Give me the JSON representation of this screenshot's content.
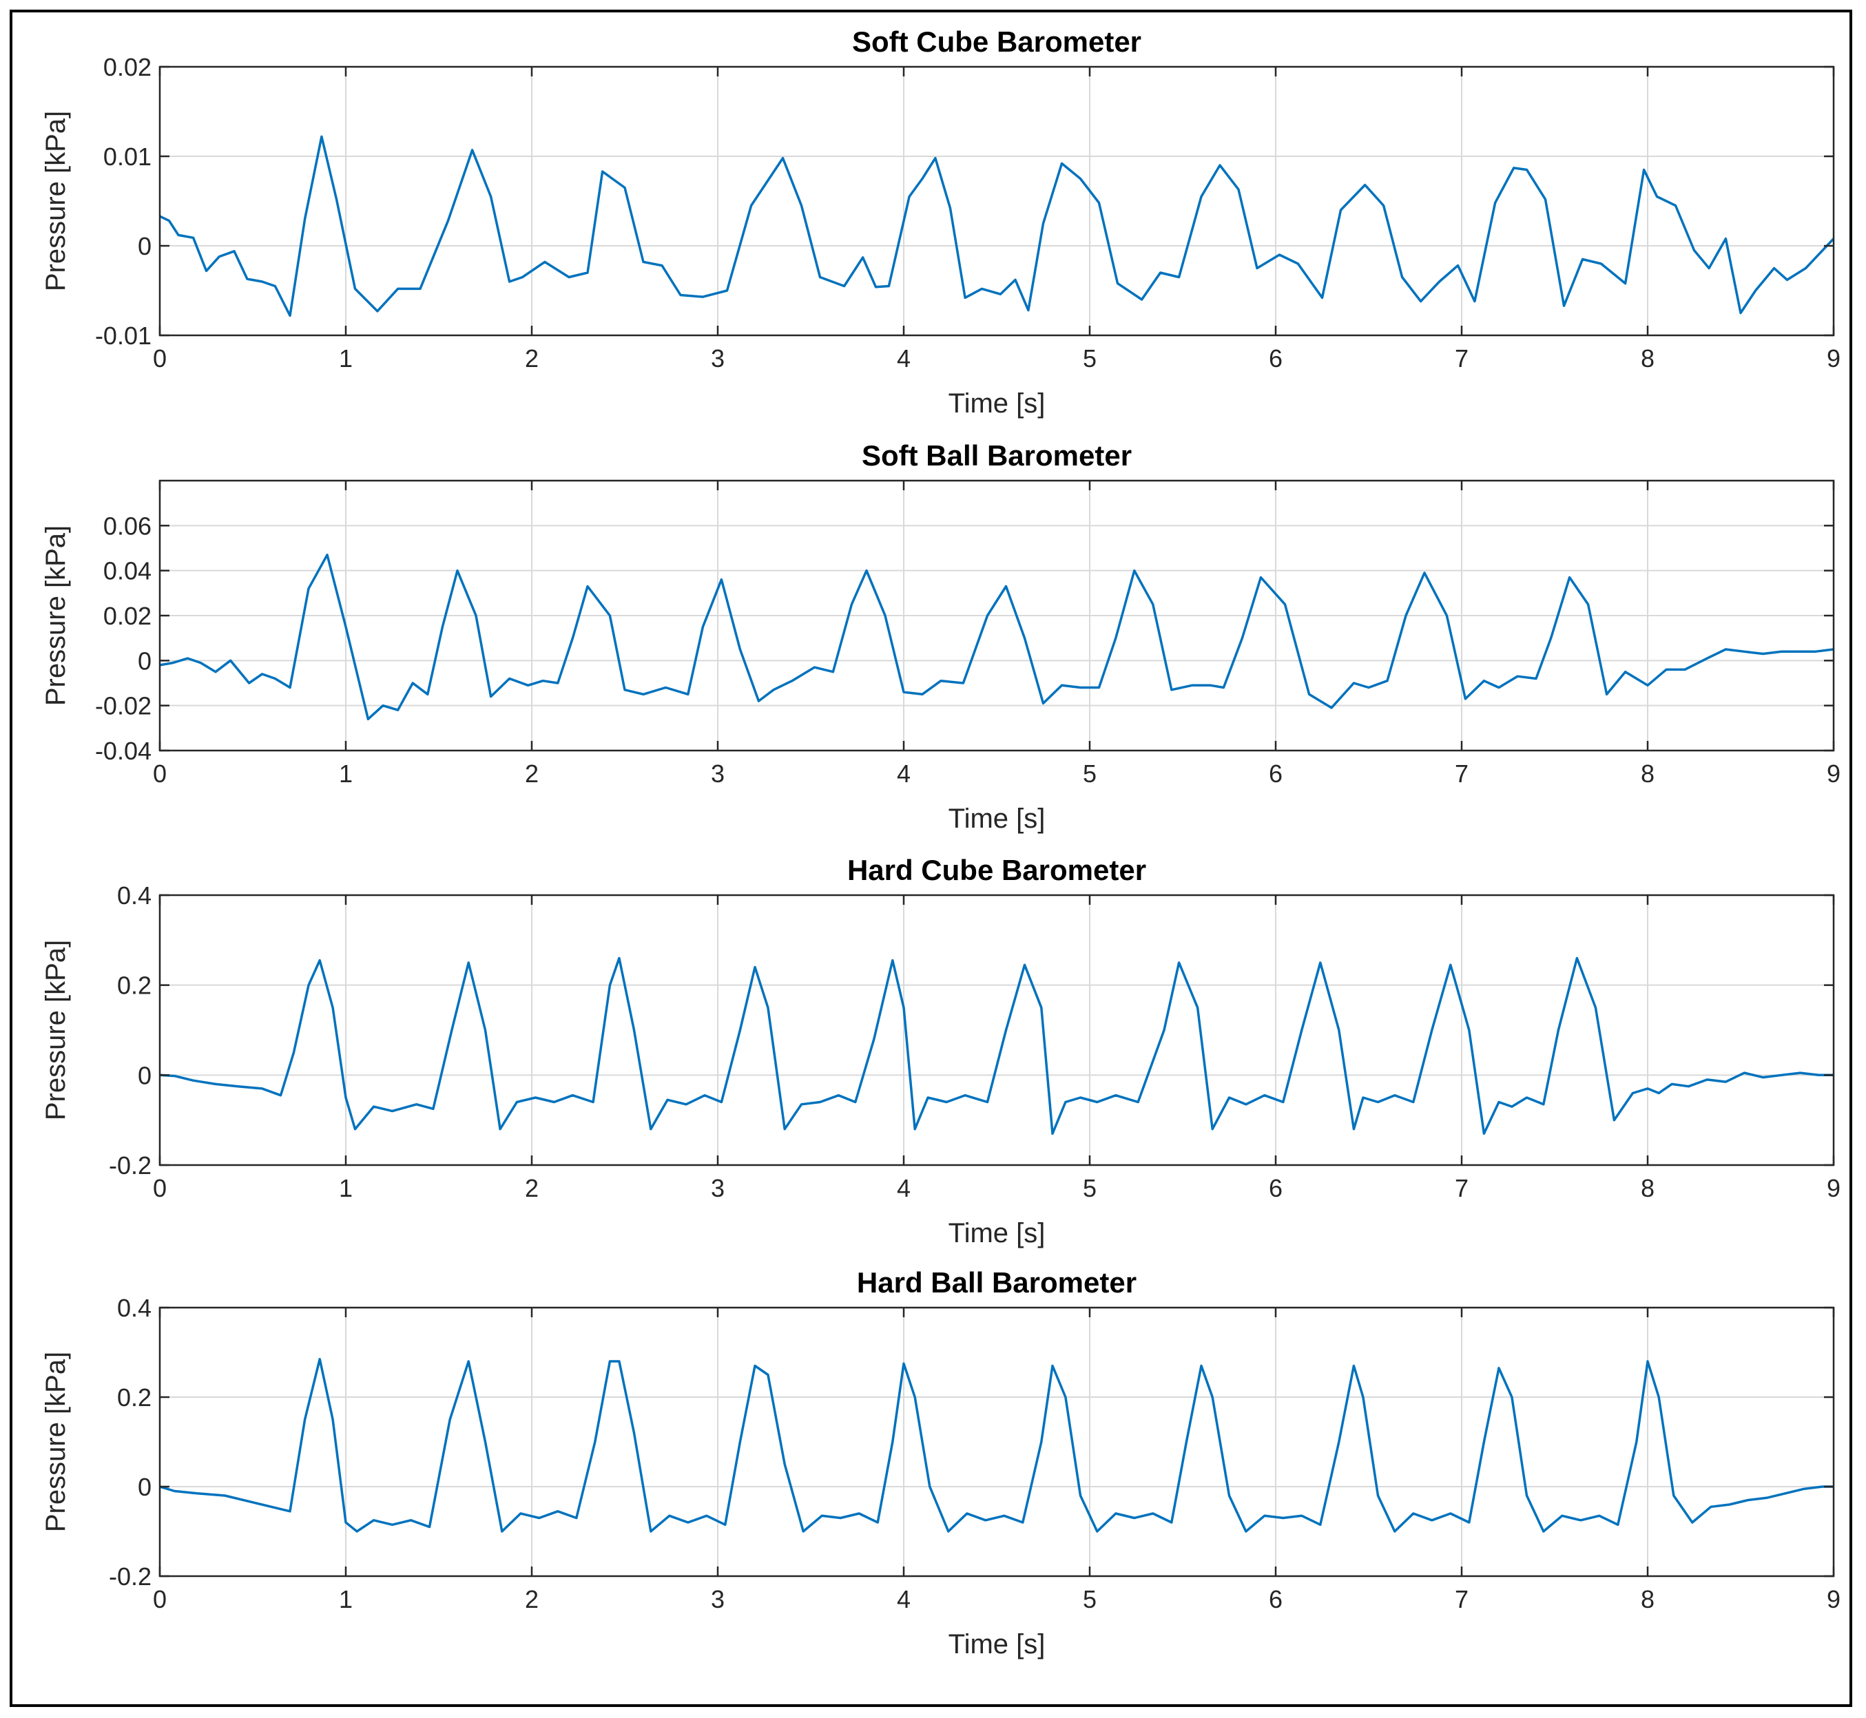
{
  "chart_data": [
    {
      "type": "line",
      "title": "Soft Cube Barometer",
      "xlabel": "Time [s]",
      "ylabel": "Pressure [kPa]",
      "xlim": [
        0,
        9
      ],
      "ylim": [
        -0.01,
        0.02
      ],
      "xticks": [
        0,
        1,
        2,
        3,
        4,
        5,
        6,
        7,
        8,
        9
      ],
      "xtick_labels": [
        "0",
        "1",
        "2",
        "3",
        "4",
        "5",
        "6",
        "7",
        "8",
        "9"
      ],
      "yticks": [
        -0.01,
        0,
        0.01,
        0.02
      ],
      "ytick_labels": [
        "-0.01",
        "0",
        "0.01",
        "0.02"
      ],
      "grid": true,
      "series": [
        {
          "name": "Soft Cube",
          "color": "#0072BD",
          "x": [
            0.0,
            0.05,
            0.1,
            0.18,
            0.25,
            0.32,
            0.4,
            0.47,
            0.55,
            0.62,
            0.7,
            0.78,
            0.87,
            0.95,
            1.05,
            1.17,
            1.28,
            1.4,
            1.55,
            1.68,
            1.78,
            1.88,
            1.95,
            2.07,
            2.2,
            2.3,
            2.38,
            2.5,
            2.6,
            2.7,
            2.8,
            2.92,
            3.05,
            3.18,
            3.35,
            3.45,
            3.55,
            3.68,
            3.78,
            3.85,
            3.92,
            4.03,
            4.1,
            4.17,
            4.25,
            4.33,
            4.42,
            4.52,
            4.6,
            4.67,
            4.75,
            4.85,
            4.95,
            5.05,
            5.15,
            5.28,
            5.38,
            5.48,
            5.6,
            5.7,
            5.8,
            5.9,
            6.02,
            6.12,
            6.25,
            6.35,
            6.48,
            6.58,
            6.68,
            6.78,
            6.88,
            6.98,
            7.07,
            7.18,
            7.28,
            7.35,
            7.45,
            7.55,
            7.65,
            7.75,
            7.88,
            7.98,
            8.05,
            8.15,
            8.25,
            8.33,
            8.42,
            8.5,
            8.58,
            8.68,
            8.75,
            8.85,
            9.0
          ],
          "values": [
            0.0033,
            0.0028,
            0.0012,
            0.0009,
            -0.0028,
            -0.0012,
            -0.0006,
            -0.0037,
            -0.004,
            -0.0045,
            -0.0078,
            0.003,
            0.0122,
            0.0052,
            -0.0048,
            -0.0073,
            -0.0048,
            -0.0048,
            0.0028,
            0.0107,
            0.0055,
            -0.004,
            -0.0035,
            -0.0018,
            -0.0035,
            -0.003,
            0.0083,
            0.0065,
            -0.0018,
            -0.0022,
            -0.0055,
            -0.0057,
            -0.005,
            0.0045,
            0.0098,
            0.0045,
            -0.0035,
            -0.0045,
            -0.0013,
            -0.0046,
            -0.0045,
            0.0055,
            0.0075,
            0.0098,
            0.0042,
            -0.0058,
            -0.0048,
            -0.0054,
            -0.0038,
            -0.0072,
            0.0025,
            0.0092,
            0.0075,
            0.0048,
            -0.0042,
            -0.006,
            -0.003,
            -0.0035,
            0.0055,
            0.009,
            0.0063,
            -0.0025,
            -0.001,
            -0.002,
            -0.0058,
            0.004,
            0.0068,
            0.0045,
            -0.0035,
            -0.0062,
            -0.004,
            -0.0022,
            -0.0062,
            0.0048,
            0.0087,
            0.0085,
            0.0052,
            -0.0067,
            -0.0015,
            -0.002,
            -0.0042,
            0.0085,
            0.0055,
            0.0045,
            -0.0005,
            -0.0025,
            0.0008,
            -0.0075,
            -0.005,
            -0.0025,
            -0.0038,
            -0.0025,
            0.0008
          ]
        }
      ]
    },
    {
      "type": "line",
      "title": "Soft Ball Barometer",
      "xlabel": "Time [s]",
      "ylabel": "Pressure [kPa]",
      "xlim": [
        0,
        9
      ],
      "ylim": [
        -0.04,
        0.08
      ],
      "xticks": [
        0,
        1,
        2,
        3,
        4,
        5,
        6,
        7,
        8,
        9
      ],
      "xtick_labels": [
        "0",
        "1",
        "2",
        "3",
        "4",
        "5",
        "6",
        "7",
        "8",
        "9"
      ],
      "yticks": [
        -0.04,
        -0.02,
        0,
        0.02,
        0.04,
        0.06
      ],
      "ytick_labels": [
        "-0.04",
        "-0.02",
        "0",
        "0.02",
        "0.04",
        "0.06"
      ],
      "grid": true,
      "series": [
        {
          "name": "Soft Ball",
          "color": "#0072BD",
          "x": [
            0.0,
            0.07,
            0.15,
            0.22,
            0.3,
            0.38,
            0.48,
            0.55,
            0.62,
            0.7,
            0.8,
            0.9,
            1.0,
            1.12,
            1.2,
            1.28,
            1.36,
            1.44,
            1.52,
            1.6,
            1.7,
            1.78,
            1.88,
            1.98,
            2.06,
            2.14,
            2.22,
            2.3,
            2.42,
            2.5,
            2.6,
            2.72,
            2.84,
            2.92,
            3.02,
            3.12,
            3.22,
            3.3,
            3.4,
            3.52,
            3.62,
            3.72,
            3.8,
            3.9,
            4.0,
            4.1,
            4.2,
            4.32,
            4.45,
            4.55,
            4.65,
            4.75,
            4.85,
            4.95,
            5.05,
            5.14,
            5.24,
            5.34,
            5.44,
            5.55,
            5.65,
            5.72,
            5.82,
            5.92,
            6.05,
            6.18,
            6.3,
            6.42,
            6.5,
            6.6,
            6.7,
            6.8,
            6.92,
            7.02,
            7.12,
            7.2,
            7.3,
            7.4,
            7.48,
            7.58,
            7.68,
            7.78,
            7.88,
            8.0,
            8.1,
            8.2,
            8.32,
            8.42,
            8.52,
            8.62,
            8.72,
            8.8,
            8.9,
            9.0
          ],
          "values": [
            -0.002,
            -0.001,
            0.001,
            -0.001,
            -0.005,
            0.0,
            -0.01,
            -0.006,
            -0.008,
            -0.012,
            0.032,
            0.047,
            0.015,
            -0.026,
            -0.02,
            -0.022,
            -0.01,
            -0.015,
            0.015,
            0.04,
            0.02,
            -0.016,
            -0.008,
            -0.011,
            -0.009,
            -0.01,
            0.01,
            0.033,
            0.02,
            -0.013,
            -0.015,
            -0.012,
            -0.015,
            0.015,
            0.036,
            0.005,
            -0.018,
            -0.013,
            -0.009,
            -0.003,
            -0.005,
            0.025,
            0.04,
            0.02,
            -0.014,
            -0.015,
            -0.009,
            -0.01,
            0.02,
            0.033,
            0.01,
            -0.019,
            -0.011,
            -0.012,
            -0.012,
            0.01,
            0.04,
            0.025,
            -0.013,
            -0.011,
            -0.011,
            -0.012,
            0.01,
            0.037,
            0.025,
            -0.015,
            -0.021,
            -0.01,
            -0.012,
            -0.009,
            0.02,
            0.039,
            0.02,
            -0.017,
            -0.009,
            -0.012,
            -0.007,
            -0.008,
            0.01,
            0.037,
            0.025,
            -0.015,
            -0.005,
            -0.011,
            -0.004,
            -0.004,
            0.001,
            0.005,
            0.004,
            0.003,
            0.004,
            0.004,
            0.004,
            0.005
          ]
        }
      ]
    },
    {
      "type": "line",
      "title": "Hard Cube Barometer",
      "xlabel": "Time [s]",
      "ylabel": "Pressure [kPa]",
      "xlim": [
        0,
        9
      ],
      "ylim": [
        -0.2,
        0.4
      ],
      "xticks": [
        0,
        1,
        2,
        3,
        4,
        5,
        6,
        7,
        8,
        9
      ],
      "xtick_labels": [
        "0",
        "1",
        "2",
        "3",
        "4",
        "5",
        "6",
        "7",
        "8",
        "9"
      ],
      "yticks": [
        -0.2,
        0,
        0.2,
        0.4
      ],
      "ytick_labels": [
        "-0.2",
        "0",
        "0.2",
        "0.4"
      ],
      "grid": true,
      "series": [
        {
          "name": "Hard Cube",
          "color": "#0072BD",
          "x": [
            0.0,
            0.08,
            0.18,
            0.3,
            0.42,
            0.55,
            0.65,
            0.72,
            0.8,
            0.86,
            0.93,
            1.0,
            1.05,
            1.15,
            1.25,
            1.38,
            1.47,
            1.57,
            1.66,
            1.75,
            1.83,
            1.92,
            2.02,
            2.12,
            2.22,
            2.33,
            2.42,
            2.47,
            2.55,
            2.64,
            2.73,
            2.83,
            2.93,
            3.02,
            3.12,
            3.2,
            3.27,
            3.36,
            3.45,
            3.55,
            3.65,
            3.74,
            3.84,
            3.94,
            4.0,
            4.06,
            4.13,
            4.23,
            4.33,
            4.45,
            4.55,
            4.65,
            4.74,
            4.8,
            4.87,
            4.95,
            5.04,
            5.14,
            5.26,
            5.4,
            5.48,
            5.58,
            5.66,
            5.75,
            5.84,
            5.94,
            6.04,
            6.14,
            6.24,
            6.34,
            6.42,
            6.47,
            6.55,
            6.64,
            6.74,
            6.84,
            6.94,
            7.04,
            7.12,
            7.2,
            7.27,
            7.35,
            7.44,
            7.52,
            7.62,
            7.72,
            7.82,
            7.92,
            8.0,
            8.06,
            8.13,
            8.22,
            8.32,
            8.42,
            8.52,
            8.62,
            8.72,
            8.82,
            8.92,
            9.0
          ],
          "values": [
            0.0,
            -0.002,
            -0.012,
            -0.02,
            -0.025,
            -0.03,
            -0.045,
            0.05,
            0.2,
            0.255,
            0.15,
            -0.05,
            -0.12,
            -0.07,
            -0.08,
            -0.065,
            -0.075,
            0.1,
            0.25,
            0.1,
            -0.12,
            -0.06,
            -0.05,
            -0.06,
            -0.045,
            -0.06,
            0.2,
            0.26,
            0.1,
            -0.12,
            -0.055,
            -0.065,
            -0.045,
            -0.06,
            0.1,
            0.24,
            0.15,
            -0.12,
            -0.065,
            -0.06,
            -0.045,
            -0.06,
            0.08,
            0.255,
            0.15,
            -0.12,
            -0.05,
            -0.06,
            -0.045,
            -0.06,
            0.1,
            0.245,
            0.15,
            -0.13,
            -0.06,
            -0.05,
            -0.06,
            -0.045,
            -0.06,
            0.1,
            0.25,
            0.15,
            -0.12,
            -0.05,
            -0.065,
            -0.045,
            -0.06,
            0.1,
            0.25,
            0.1,
            -0.12,
            -0.05,
            -0.06,
            -0.045,
            -0.06,
            0.1,
            0.245,
            0.1,
            -0.13,
            -0.06,
            -0.07,
            -0.05,
            -0.065,
            0.1,
            0.26,
            0.15,
            -0.1,
            -0.04,
            -0.03,
            -0.04,
            -0.02,
            -0.025,
            -0.01,
            -0.015,
            0.005,
            -0.005,
            0.0,
            0.005,
            0.0,
            0.0
          ]
        }
      ]
    },
    {
      "type": "line",
      "title": "Hard Ball Barometer",
      "xlabel": "Time [s]",
      "ylabel": "Pressure [kPa]",
      "xlim": [
        0,
        9
      ],
      "ylim": [
        -0.2,
        0.4
      ],
      "xticks": [
        0,
        1,
        2,
        3,
        4,
        5,
        6,
        7,
        8,
        9
      ],
      "xtick_labels": [
        "0",
        "1",
        "2",
        "3",
        "4",
        "5",
        "6",
        "7",
        "8",
        "9"
      ],
      "yticks": [
        -0.2,
        0,
        0.2,
        0.4
      ],
      "ytick_labels": [
        "-0.2",
        "0",
        "0.2",
        "0.4"
      ],
      "grid": true,
      "series": [
        {
          "name": "Hard Ball",
          "color": "#0072BD",
          "x": [
            0.0,
            0.08,
            0.2,
            0.35,
            0.5,
            0.6,
            0.7,
            0.78,
            0.86,
            0.93,
            1.0,
            1.06,
            1.15,
            1.25,
            1.35,
            1.45,
            1.56,
            1.66,
            1.75,
            1.84,
            1.94,
            2.04,
            2.14,
            2.24,
            2.34,
            2.42,
            2.47,
            2.55,
            2.64,
            2.74,
            2.84,
            2.94,
            3.04,
            3.12,
            3.2,
            3.27,
            3.36,
            3.46,
            3.56,
            3.66,
            3.76,
            3.86,
            3.94,
            4.0,
            4.06,
            4.14,
            4.24,
            4.34,
            4.44,
            4.54,
            4.64,
            4.74,
            4.8,
            4.87,
            4.95,
            5.04,
            5.14,
            5.24,
            5.34,
            5.44,
            5.52,
            5.6,
            5.66,
            5.75,
            5.84,
            5.94,
            6.04,
            6.14,
            6.24,
            6.34,
            6.42,
            6.47,
            6.55,
            6.64,
            6.74,
            6.84,
            6.94,
            7.04,
            7.12,
            7.2,
            7.27,
            7.35,
            7.44,
            7.54,
            7.64,
            7.74,
            7.84,
            7.94,
            8.0,
            8.06,
            8.14,
            8.24,
            8.34,
            8.44,
            8.54,
            8.64,
            8.74,
            8.84,
            8.94,
            9.0
          ],
          "values": [
            0.0,
            -0.01,
            -0.015,
            -0.02,
            -0.035,
            -0.045,
            -0.055,
            0.15,
            0.285,
            0.15,
            -0.08,
            -0.1,
            -0.075,
            -0.085,
            -0.075,
            -0.09,
            0.15,
            0.28,
            0.1,
            -0.1,
            -0.06,
            -0.07,
            -0.055,
            -0.07,
            0.1,
            0.28,
            0.28,
            0.12,
            -0.1,
            -0.065,
            -0.08,
            -0.065,
            -0.085,
            0.1,
            0.27,
            0.25,
            0.05,
            -0.1,
            -0.065,
            -0.07,
            -0.06,
            -0.08,
            0.1,
            0.275,
            0.2,
            0.0,
            -0.1,
            -0.06,
            -0.075,
            -0.065,
            -0.08,
            0.1,
            0.27,
            0.2,
            -0.02,
            -0.1,
            -0.06,
            -0.07,
            -0.06,
            -0.08,
            0.1,
            0.27,
            0.2,
            -0.02,
            -0.1,
            -0.065,
            -0.07,
            -0.065,
            -0.085,
            0.1,
            0.27,
            0.2,
            -0.02,
            -0.1,
            -0.06,
            -0.075,
            -0.06,
            -0.08,
            0.1,
            0.265,
            0.2,
            -0.02,
            -0.1,
            -0.065,
            -0.075,
            -0.065,
            -0.085,
            0.1,
            0.28,
            0.2,
            -0.02,
            -0.08,
            -0.045,
            -0.04,
            -0.03,
            -0.025,
            -0.015,
            -0.005,
            0.0,
            0.0
          ]
        }
      ]
    }
  ]
}
